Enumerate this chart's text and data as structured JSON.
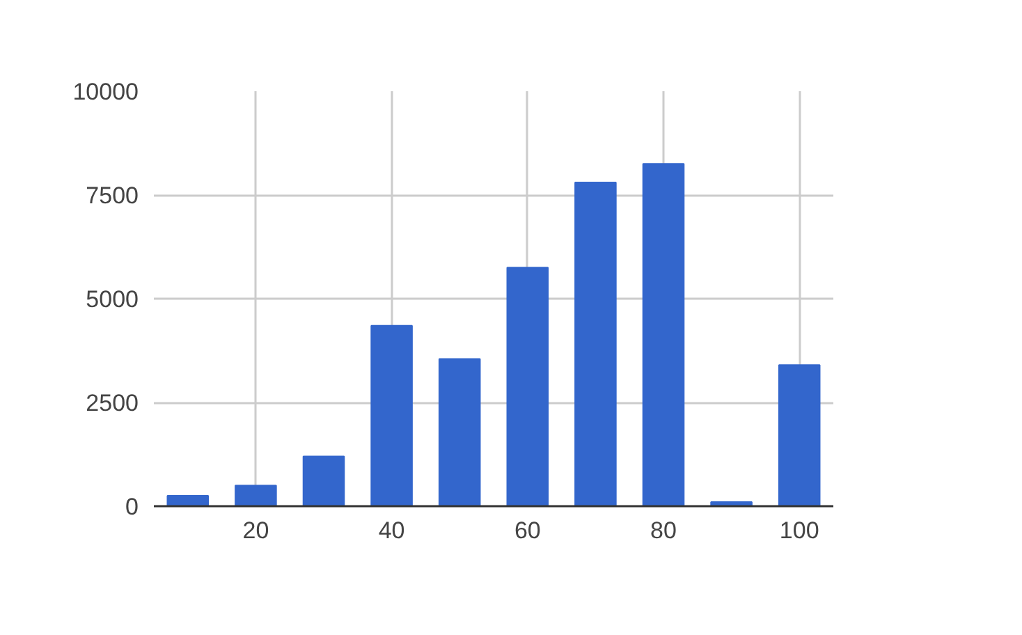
{
  "chart_data": {
    "type": "bar",
    "x": [
      10,
      20,
      30,
      40,
      50,
      60,
      70,
      80,
      90,
      100
    ],
    "series": [
      {
        "color": "#3366cc",
        "values": [
          250,
          500,
          1200,
          4350,
          3550,
          5750,
          7800,
          8250,
          100,
          3400
        ]
      }
    ],
    "xlim": [
      5,
      105
    ],
    "xticks": [
      20,
      40,
      60,
      80,
      100
    ],
    "ylim": [
      0,
      10000
    ],
    "yticks": [
      0,
      2500,
      5000,
      7500,
      10000
    ],
    "grid": true
  }
}
